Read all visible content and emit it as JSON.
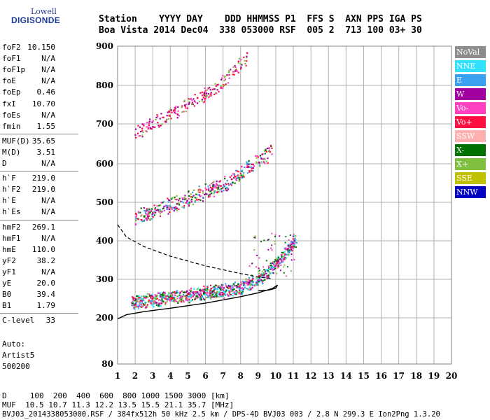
{
  "logo": {
    "line1": "Lowell",
    "line2": "DIGISONDE"
  },
  "header": {
    "line1": "Station    YYYY DAY    DDD HHMMSS P1  FFS S  AXN PPS IGA PS",
    "line2": "Boa Vista 2014 Dec04  338 053000 RSF  005 2  713 100 03+ 30"
  },
  "params": [
    {
      "name": "foF2",
      "value": "10.150"
    },
    {
      "name": "foF1",
      "value": "N/A"
    },
    {
      "name": "foF1p",
      "value": "N/A"
    },
    {
      "name": "foE",
      "value": "N/A"
    },
    {
      "name": "foEp",
      "value": "0.46"
    },
    {
      "name": "fxI",
      "value": "10.70"
    },
    {
      "name": "foEs",
      "value": "N/A"
    },
    {
      "name": "fmin",
      "value": "1.55"
    },
    {
      "name": "MUF(D)",
      "value": "35.65"
    },
    {
      "name": "M(D)",
      "value": "3.51"
    },
    {
      "name": "D",
      "value": "N/A"
    },
    {
      "name": "h`F",
      "value": "219.0"
    },
    {
      "name": "h`F2",
      "value": "219.0"
    },
    {
      "name": "h`E",
      "value": "N/A"
    },
    {
      "name": "h`Es",
      "value": "N/A"
    },
    {
      "name": "hmF2",
      "value": "269.1"
    },
    {
      "name": "hmF1",
      "value": "N/A"
    },
    {
      "name": "hmE",
      "value": "110.0"
    },
    {
      "name": "yF2",
      "value": "38.2"
    },
    {
      "name": "yF1",
      "value": "N/A"
    },
    {
      "name": "yE",
      "value": "20.0"
    },
    {
      "name": "B0",
      "value": "39.4"
    },
    {
      "name": "B1",
      "value": "1.79"
    },
    {
      "name": "C-level",
      "value": "33"
    }
  ],
  "auto": {
    "line1": "Auto:",
    "line2": "Artist5",
    "line3": "500200"
  },
  "legend": [
    {
      "label": "NoVal",
      "bg": "#8c8c8c",
      "fg": "#ffffff"
    },
    {
      "label": "NNE",
      "bg": "#33e0ff",
      "fg": "#ffffff"
    },
    {
      "label": "E",
      "bg": "#3aa0f0",
      "fg": "#ffffff"
    },
    {
      "label": "W",
      "bg": "#a000a0",
      "fg": "#ffffff"
    },
    {
      "label": "Vo-",
      "bg": "#ff40c0",
      "fg": "#ffffff"
    },
    {
      "label": "Vo+",
      "bg": "#ff1040",
      "fg": "#ffffff"
    },
    {
      "label": "SSW",
      "bg": "#ffb0b0",
      "fg": "#ffffff"
    },
    {
      "label": "X-",
      "bg": "#007000",
      "fg": "#ffffff"
    },
    {
      "label": "X+",
      "bg": "#80c040",
      "fg": "#ffffff"
    },
    {
      "label": "SSE",
      "bg": "#c0c000",
      "fg": "#ffffff"
    },
    {
      "label": "NNW",
      "bg": "#0000c0",
      "fg": "#ffffff"
    }
  ],
  "footer": {
    "line1": "D     100  200  400  600  800 1000 1500 3000 [km]",
    "line2": "MUF  10.5 10.7 11.3 12.2 13.5 15.5 21.1 35.7 [MHz]",
    "line3": "BVJ03_2014338053000.RSF / 384fx512h 50 kHz 2.5 km / DPS-4D BVJ03 003 / 2.8 N 299.3 E Ion2Png 1.3.20"
  },
  "chart_data": {
    "type": "scatter",
    "xlim": [
      1,
      20
    ],
    "ylim": [
      80,
      900
    ],
    "xticks": [
      1,
      2,
      3,
      4,
      5,
      6,
      7,
      8,
      9,
      10,
      11,
      12,
      13,
      14,
      15,
      16,
      17,
      18,
      19,
      20
    ],
    "yticks": [
      80,
      200,
      300,
      400,
      500,
      600,
      700,
      800,
      900
    ],
    "grid": true,
    "legend_position": "right",
    "profile_solid": [
      [
        1.0,
        197
      ],
      [
        1.5,
        208
      ],
      [
        2.5,
        216
      ],
      [
        4,
        225
      ],
      [
        6,
        238
      ],
      [
        8,
        255
      ],
      [
        9,
        265
      ],
      [
        9.8,
        276
      ],
      [
        10.1,
        285
      ],
      [
        10.0,
        277
      ],
      [
        9.6,
        272
      ],
      [
        9.0,
        270
      ]
    ],
    "profile_dashed": [
      [
        1.0,
        442
      ],
      [
        1.5,
        410
      ],
      [
        2.5,
        385
      ],
      [
        4,
        360
      ],
      [
        6,
        335
      ],
      [
        8,
        315
      ],
      [
        9,
        306
      ],
      [
        9.8,
        302
      ]
    ]
  }
}
